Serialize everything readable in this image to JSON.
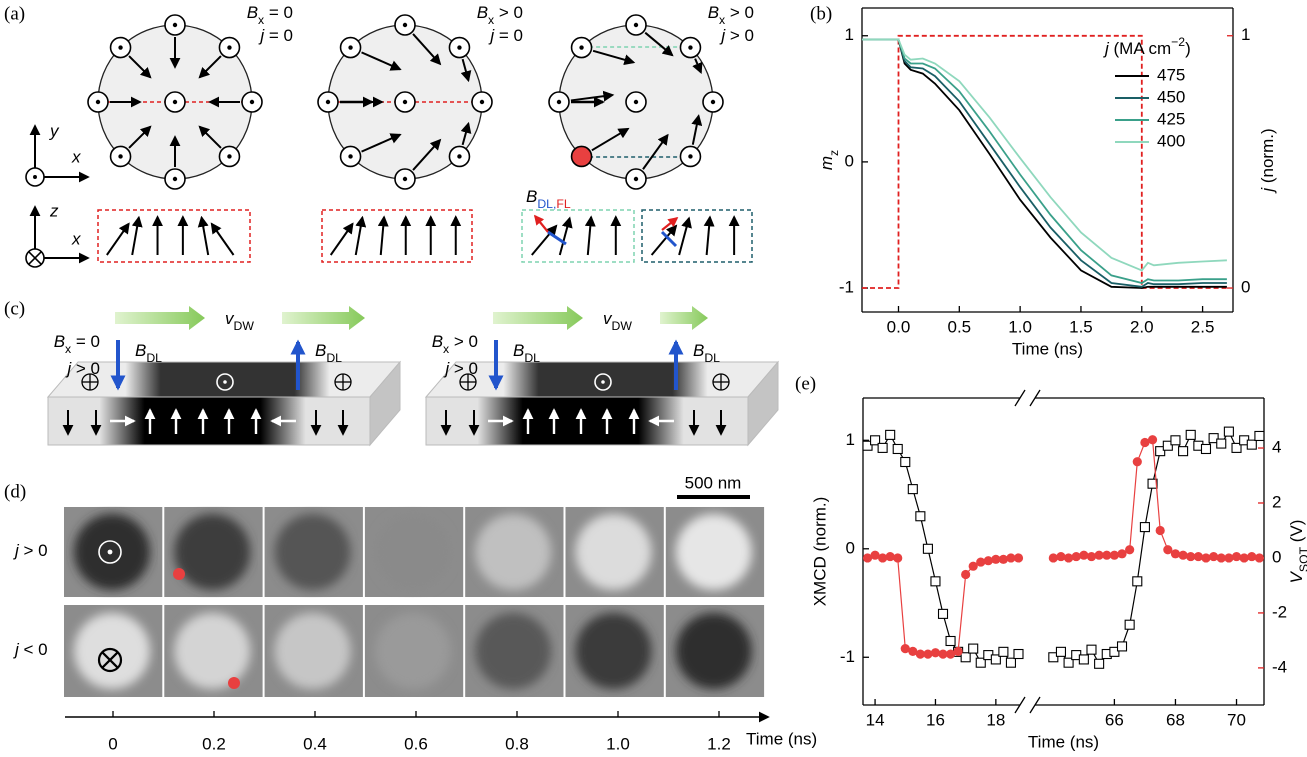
{
  "figure": {
    "panel_a": {
      "label": "(a)",
      "conditions": [
        {
          "field": [
            {
              "i": "B"
            },
            {
              "sub": "x"
            },
            {
              "t": " = 0"
            }
          ],
          "current": [
            {
              "i": "j"
            },
            {
              "t": " = 0"
            }
          ]
        },
        {
          "field": [
            {
              "i": "B"
            },
            {
              "sub": "x"
            },
            {
              "t": " > 0"
            }
          ],
          "current": [
            {
              "i": "j"
            },
            {
              "t": " = 0"
            }
          ]
        },
        {
          "field": [
            {
              "i": "B"
            },
            {
              "sub": "x"
            },
            {
              "t": " > 0"
            }
          ],
          "current": [
            {
              "i": "j"
            },
            {
              "t": " > 0"
            }
          ]
        }
      ],
      "torque_label": [
        {
          "i": "B"
        },
        {
          "sub": "DL,",
          "color": "#2255cc"
        },
        {
          "sub": "FL",
          "color": "#e02020"
        }
      ],
      "axes_top": [
        "y",
        "x"
      ],
      "axes_bottom": [
        "z",
        "x"
      ]
    },
    "panel_c": {
      "label": "(c)",
      "velocity": [
        {
          "i": "v"
        },
        {
          "sub": "DW"
        }
      ],
      "field_label": [
        {
          "i": "B"
        },
        {
          "sub": "DL"
        }
      ],
      "conditions": [
        {
          "field": [
            {
              "i": "B"
            },
            {
              "sub": "x"
            },
            {
              "t": " = 0"
            }
          ],
          "current": [
            {
              "i": "j"
            },
            {
              "t": " > 0"
            }
          ]
        },
        {
          "field": [
            {
              "i": "B"
            },
            {
              "sub": "x"
            },
            {
              "t": " > 0"
            }
          ],
          "current": [
            {
              "i": "j"
            },
            {
              "t": " > 0"
            }
          ]
        }
      ]
    },
    "panel_d": {
      "label": "(d)",
      "scale_bar": "500 nm",
      "rows": [
        [
          {
            "i": "j"
          },
          {
            "t": " > 0"
          }
        ],
        [
          {
            "i": "j"
          },
          {
            "t": " < 0"
          }
        ]
      ],
      "times": [
        "0",
        "0.2",
        "0.4",
        "0.6",
        "0.8",
        "1.0",
        "1.2"
      ],
      "time_label": "Time (ns)"
    }
  },
  "chart_data": [
    {
      "type": "line",
      "panel_label": "(b)",
      "xlabel": "Time (ns)",
      "ylabel": [
        {
          "i": "m"
        },
        {
          "sub": "z"
        }
      ],
      "y2label": [
        {
          "i": "j"
        },
        {
          "t": " (norm.)"
        }
      ],
      "x": [
        -0.3,
        -0.1,
        0,
        0.05,
        0.1,
        0.2,
        0.3,
        0.5,
        0.75,
        1,
        1.25,
        1.5,
        1.75,
        2,
        2.05,
        2.1,
        2.3,
        2.5,
        2.7
      ],
      "series": [
        {
          "name": "475",
          "color": "#000000",
          "values": [
            0.97,
            0.97,
            0.97,
            0.78,
            0.73,
            0.7,
            0.62,
            0.41,
            0.06,
            -0.3,
            -0.6,
            -0.86,
            -0.99,
            -1,
            -0.99,
            -0.99,
            -0.99,
            -0.99,
            -0.99
          ]
        },
        {
          "name": "450",
          "color": "#1a5f66",
          "values": [
            0.97,
            0.97,
            0.97,
            0.8,
            0.75,
            0.74,
            0.68,
            0.48,
            0.14,
            -0.2,
            -0.52,
            -0.78,
            -0.96,
            -0.99,
            -0.96,
            -0.97,
            -0.97,
            -0.96,
            -0.96
          ]
        },
        {
          "name": "425",
          "color": "#3aa08a",
          "values": [
            0.97,
            0.97,
            0.97,
            0.82,
            0.78,
            0.78,
            0.74,
            0.56,
            0.24,
            -0.1,
            -0.42,
            -0.7,
            -0.9,
            -0.96,
            -0.93,
            -0.94,
            -0.94,
            -0.93,
            -0.93
          ]
        },
        {
          "name": "400",
          "color": "#8fd8bd",
          "values": [
            0.97,
            0.97,
            0.97,
            0.85,
            0.81,
            0.82,
            0.78,
            0.64,
            0.35,
            0.03,
            -0.28,
            -0.56,
            -0.76,
            -0.86,
            -0.8,
            -0.82,
            -0.8,
            -0.79,
            -0.78
          ]
        }
      ],
      "legend_title": [
        {
          "i": "j"
        },
        {
          "t": " (MA cm"
        },
        {
          "sup": "−2"
        },
        {
          "t": ")"
        }
      ],
      "legend": "upper right",
      "current_pulse": {
        "x": [
          -0.3,
          0,
          0,
          2,
          2,
          2.7
        ],
        "values": [
          0,
          0,
          1,
          1,
          0,
          0
        ],
        "color": "#e02020",
        "axis": "y2"
      },
      "xlim": [
        -0.3,
        2.75
      ],
      "xticks": [
        {
          "value": 0,
          "label": "0.0"
        },
        0.5,
        {
          "value": 1,
          "label": "1.0"
        },
        1.5,
        {
          "value": 2,
          "label": "2.0"
        },
        2.5
      ],
      "ylim": [
        -1.19,
        1.22
      ],
      "yticks": [
        -1,
        0,
        1
      ],
      "y2lim": [
        -0.095,
        1.11
      ],
      "y2ticks": [
        0,
        1
      ],
      "y2color": "#e02020"
    },
    {
      "type": "line",
      "panel_label": "(e)",
      "xlabel": "Time (ns)",
      "ylabel": "XMCD (norm.)",
      "y2label": [
        {
          "i": "V"
        },
        {
          "sub": "SOT"
        },
        {
          "t": " (V)"
        }
      ],
      "x": [
        13.75,
        14,
        14.25,
        14.5,
        14.75,
        15,
        15.25,
        15.5,
        15.75,
        16,
        16.25,
        16.5,
        16.75,
        17,
        17.25,
        17.5,
        17.75,
        18,
        18.25,
        18.5,
        18.75,
        64,
        64.25,
        64.5,
        64.75,
        65,
        65.25,
        65.5,
        65.75,
        66,
        66.25,
        66.5,
        66.75,
        67,
        67.25,
        67.5,
        67.75,
        68,
        68.25,
        68.5,
        68.75,
        69,
        69.25,
        69.5,
        69.75,
        70,
        70.25,
        70.5,
        70.75
      ],
      "series": [
        {
          "color": "#000000",
          "marker": "square",
          "values": [
            0.95,
            1.0,
            0.93,
            1.05,
            0.92,
            0.8,
            0.55,
            0.3,
            0,
            -0.3,
            -0.6,
            -0.85,
            -0.95,
            -1.0,
            -0.92,
            -1.05,
            -0.98,
            -1.02,
            -0.95,
            -1.05,
            -0.97,
            -1.0,
            -0.95,
            -1.05,
            -0.98,
            -1.02,
            -0.93,
            -1.06,
            -0.97,
            -0.95,
            -0.9,
            -0.7,
            -0.3,
            0.2,
            0.6,
            0.9,
            0.95,
            1.0,
            0.9,
            1.05,
            0.95,
            0.92,
            1.02,
            0.97,
            1.08,
            0.93,
            1.0,
            0.96,
            1.04
          ]
        },
        {
          "color": "#e84040",
          "marker": "circle",
          "axis": "y2",
          "values": [
            0,
            0.1,
            0,
            0.05,
            0,
            -3.3,
            -3.4,
            -3.5,
            -3.5,
            -3.45,
            -3.5,
            -3.5,
            -3.4,
            -0.6,
            -0.3,
            -0.15,
            -0.1,
            -0.05,
            -0.05,
            0,
            0,
            0,
            0.05,
            0,
            0.05,
            0.1,
            0.05,
            0.1,
            0.1,
            0.1,
            0.15,
            0.3,
            3.5,
            4.2,
            4.3,
            1.0,
            0.3,
            0.15,
            0.1,
            0.05,
            0.05,
            0,
            0.05,
            0,
            0,
            0.05,
            0,
            0.05,
            0
          ]
        }
      ],
      "x_segments": [
        {
          "xlim": [
            13.6,
            18.8
          ],
          "xticks": [
            14,
            16,
            18
          ]
        },
        {
          "xlim": [
            63.4,
            70.9
          ],
          "xticks": [
            66,
            68,
            70
          ]
        }
      ],
      "ylim": [
        -1.44,
        1.39
      ],
      "yticks": [
        -1,
        0,
        1
      ],
      "y2lim": [
        -5.35,
        5.82
      ],
      "y2ticks": [
        -4,
        -2,
        0,
        2,
        4
      ],
      "y2color": "#e02020"
    }
  ]
}
